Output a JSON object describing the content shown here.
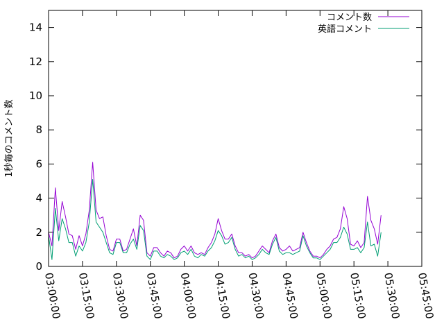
{
  "chart_data": {
    "type": "line",
    "title": "",
    "xlabel": "",
    "ylabel": "1秒毎のコメント数",
    "xlim": [
      "03:00:00",
      "05:45:00"
    ],
    "ylim": [
      0,
      15
    ],
    "x_ticks": [
      "03:00:00",
      "03:15:00",
      "03:30:00",
      "03:45:00",
      "04:00:00",
      "04:15:00",
      "04:30:00",
      "04:45:00",
      "05:00:00",
      "05:15:00",
      "05:30:00",
      "05:45:00"
    ],
    "y_ticks": [
      "0",
      "2",
      "4",
      "6",
      "8",
      "10",
      "12",
      "14"
    ],
    "legend_position": "top-right",
    "grid": false,
    "series": [
      {
        "name": "コメント数",
        "color": "#9400d3",
        "x": [
          "03:00:00",
          "03:01:30",
          "03:03:00",
          "03:04:30",
          "03:06:00",
          "03:07:30",
          "03:09:00",
          "03:10:30",
          "03:12:00",
          "03:13:30",
          "03:15:00",
          "03:16:30",
          "03:18:00",
          "03:19:30",
          "03:21:00",
          "03:22:30",
          "03:24:00",
          "03:25:30",
          "03:27:00",
          "03:28:30",
          "03:30:00",
          "03:31:30",
          "03:33:00",
          "03:34:30",
          "03:36:00",
          "03:37:30",
          "03:39:00",
          "03:40:30",
          "03:42:00",
          "03:43:30",
          "03:45:00",
          "03:46:30",
          "03:48:00",
          "03:49:30",
          "03:51:00",
          "03:52:30",
          "03:54:00",
          "03:55:30",
          "03:57:00",
          "03:58:30",
          "04:00:00",
          "04:01:30",
          "04:03:00",
          "04:04:30",
          "04:06:00",
          "04:07:30",
          "04:09:00",
          "04:10:30",
          "04:12:00",
          "04:13:30",
          "04:15:00",
          "04:16:30",
          "04:18:00",
          "04:19:30",
          "04:21:00",
          "04:22:30",
          "04:24:00",
          "04:25:30",
          "04:27:00",
          "04:28:30",
          "04:30:00",
          "04:31:30",
          "04:33:00",
          "04:34:30",
          "04:36:00",
          "04:37:30",
          "04:39:00",
          "04:40:30",
          "04:42:00",
          "04:43:30",
          "04:45:00",
          "04:46:30",
          "04:48:00",
          "04:49:30",
          "04:51:00",
          "04:52:30",
          "04:54:00",
          "04:55:30",
          "04:57:00",
          "04:58:30",
          "05:00:00",
          "05:01:30",
          "05:03:00",
          "05:04:30",
          "05:06:00",
          "05:07:30",
          "05:09:00",
          "05:10:30",
          "05:12:00",
          "05:13:30",
          "05:15:00",
          "05:16:30",
          "05:18:00",
          "05:19:30",
          "05:21:00",
          "05:22:30",
          "05:24:00",
          "05:25:30",
          "05:27:00",
          "05:28:30",
          "05:30:00",
          "05:31:30",
          "05:33:00",
          "05:34:30",
          "05:36:00"
        ],
        "y": [
          2.0,
          1.2,
          4.6,
          2.1,
          3.8,
          2.9,
          1.9,
          1.8,
          1.0,
          1.8,
          1.2,
          1.9,
          3.3,
          6.1,
          3.3,
          2.8,
          2.9,
          1.8,
          1.0,
          0.9,
          1.6,
          1.6,
          0.9,
          1.0,
          1.6,
          2.2,
          1.2,
          3.0,
          2.7,
          0.8,
          0.6,
          1.1,
          1.1,
          0.8,
          0.6,
          0.9,
          0.8,
          0.5,
          0.6,
          1.0,
          1.2,
          0.9,
          1.2,
          0.8,
          0.7,
          0.8,
          0.7,
          1.1,
          1.4,
          1.9,
          2.8,
          2.1,
          1.6,
          1.6,
          1.9,
          1.2,
          0.8,
          0.8,
          0.6,
          0.7,
          0.5,
          0.6,
          0.9,
          1.2,
          1.0,
          0.8,
          1.5,
          1.9,
          1.1,
          0.9,
          1.0,
          1.2,
          0.9,
          1.0,
          1.1,
          2.0,
          1.4,
          0.9,
          0.6,
          0.6,
          0.5,
          0.7,
          1.0,
          1.2,
          1.6,
          1.7,
          2.2,
          3.5,
          2.8,
          1.3,
          1.2,
          1.5,
          1.1,
          1.4,
          4.1,
          2.7,
          2.2,
          1.3,
          3.0,
          null,
          null,
          null,
          null,
          null,
          null
        ],
        "note": ""
      },
      {
        "name": "英語コメント",
        "color": "#009e73",
        "x": [
          "03:00:00",
          "03:01:30",
          "03:03:00",
          "03:04:30",
          "03:06:00",
          "03:07:30",
          "03:09:00",
          "03:10:30",
          "03:12:00",
          "03:13:30",
          "03:15:00",
          "03:16:30",
          "03:18:00",
          "03:19:30",
          "03:21:00",
          "03:22:30",
          "03:24:00",
          "03:25:30",
          "03:27:00",
          "03:28:30",
          "03:30:00",
          "03:31:30",
          "03:33:00",
          "03:34:30",
          "03:36:00",
          "03:37:30",
          "03:39:00",
          "03:40:30",
          "03:42:00",
          "03:43:30",
          "03:45:00",
          "03:46:30",
          "03:48:00",
          "03:49:30",
          "03:51:00",
          "03:52:30",
          "03:54:00",
          "03:55:30",
          "03:57:00",
          "03:58:30",
          "04:00:00",
          "04:01:30",
          "04:03:00",
          "04:04:30",
          "04:06:00",
          "04:07:30",
          "04:09:00",
          "04:10:30",
          "04:12:00",
          "04:13:30",
          "04:15:00",
          "04:16:30",
          "04:18:00",
          "04:19:30",
          "04:21:00",
          "04:22:30",
          "04:24:00",
          "04:25:30",
          "04:27:00",
          "04:28:30",
          "04:30:00",
          "04:31:30",
          "04:33:00",
          "04:34:30",
          "04:36:00",
          "04:37:30",
          "04:39:00",
          "04:40:30",
          "04:42:00",
          "04:43:30",
          "04:45:00",
          "04:46:30",
          "04:48:00",
          "04:49:30",
          "04:51:00",
          "04:52:30",
          "04:54:00",
          "04:55:30",
          "04:57:00",
          "04:58:30",
          "05:00:00",
          "05:01:30",
          "05:03:00",
          "05:04:30",
          "05:06:00",
          "05:07:30",
          "05:09:00",
          "05:10:30",
          "05:12:00",
          "05:13:30",
          "05:15:00",
          "05:16:30",
          "05:18:00",
          "05:19:30",
          "05:21:00",
          "05:22:30",
          "05:24:00",
          "05:25:30",
          "05:27:00",
          "05:28:30",
          "05:30:00",
          "05:31:30",
          "05:33:00",
          "05:34:30",
          "05:36:00"
        ],
        "y": [
          1.8,
          0.4,
          3.4,
          1.5,
          2.8,
          2.2,
          1.4,
          1.4,
          0.6,
          1.2,
          0.9,
          1.4,
          2.6,
          5.1,
          2.6,
          2.3,
          2.0,
          1.4,
          0.8,
          0.7,
          1.4,
          1.4,
          0.8,
          0.8,
          1.3,
          1.6,
          1.0,
          2.4,
          2.1,
          0.6,
          0.4,
          0.9,
          0.9,
          0.6,
          0.5,
          0.7,
          0.6,
          0.4,
          0.5,
          0.8,
          0.9,
          0.7,
          1.0,
          0.6,
          0.5,
          0.7,
          0.6,
          0.9,
          1.1,
          1.5,
          2.1,
          1.8,
          1.3,
          1.4,
          1.7,
          1.0,
          0.6,
          0.7,
          0.5,
          0.6,
          0.4,
          0.5,
          0.7,
          1.0,
          0.8,
          0.7,
          1.3,
          1.7,
          0.9,
          0.7,
          0.8,
          0.8,
          0.7,
          0.8,
          0.9,
          1.8,
          1.2,
          0.8,
          0.5,
          0.5,
          0.4,
          0.6,
          0.8,
          1.0,
          1.4,
          1.4,
          1.7,
          2.3,
          1.9,
          1.0,
          1.0,
          1.1,
          0.8,
          1.1,
          2.6,
          1.2,
          1.3,
          0.6,
          2.0,
          null,
          null,
          null,
          null,
          null,
          null
        ]
      }
    ]
  }
}
